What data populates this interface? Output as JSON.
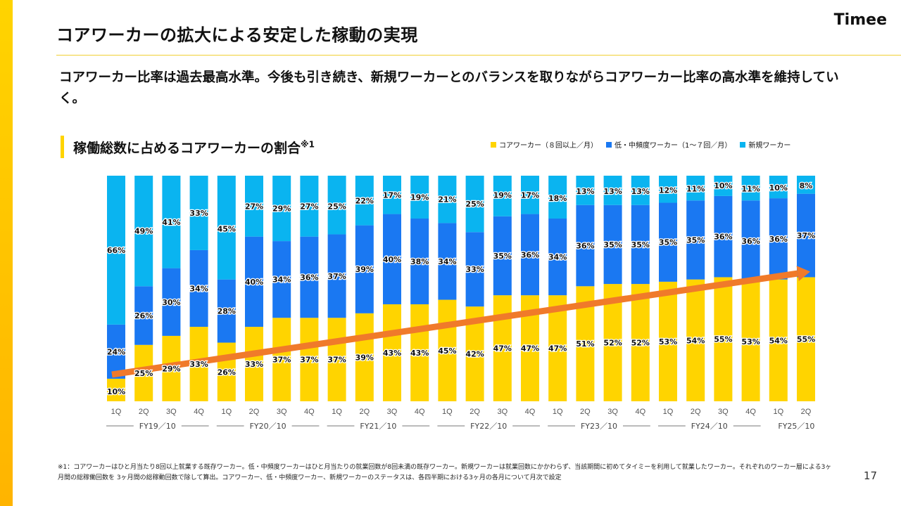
{
  "slide": {
    "title": "コアワーカーの拡大による安定した稼動の実現",
    "logo": "Timee",
    "lead": "コアワーカー比率は過去最高水準。今後も引き続き、新規ワーカーとのバランスを取りながらコアワーカー比率の高水準を維持していく。",
    "subheading": "稼働総数に占めるコアワーカーの割合",
    "subheading_note": "※1",
    "footnote": "※1：コアワーカーはひと月当たり8回以上就業する既存ワーカー。低・中頻度ワーカーはひと月当たりの就業回数が8回未満の既存ワーカー。新規ワーカーは就業回数にかかわらず、当該期間に初めてタイミーを利用して就業したワーカー。それぞれのワーカー層による3ヶ月間の総稼働回数を 3ヶ月間の総稼動回数で除して算出。コアワーカー、低・中頻度ワーカー、新規ワーカーのステータスは、各四半期における3ヶ月の各月について月次で設定",
    "page_number": "17",
    "colors": {
      "band": "#ffcc00",
      "core": "#ffd400",
      "mid": "#1a78f2",
      "new": "#0ab4f0",
      "arrow": "#f07a2a",
      "rule": "#f0cf33"
    }
  },
  "chart_data": {
    "type": "bar",
    "stacked": true,
    "legend_position": "top-right",
    "categories": [
      "1Q",
      "2Q",
      "3Q",
      "4Q",
      "1Q",
      "2Q",
      "3Q",
      "4Q",
      "1Q",
      "2Q",
      "3Q",
      "4Q",
      "1Q",
      "2Q",
      "3Q",
      "4Q",
      "1Q",
      "2Q",
      "3Q",
      "4Q",
      "1Q",
      "2Q",
      "3Q",
      "4Q",
      "1Q",
      "2Q"
    ],
    "fiscal_years": [
      {
        "label": "FY19／10",
        "count": 4
      },
      {
        "label": "FY20／10",
        "count": 4
      },
      {
        "label": "FY21／10",
        "count": 4
      },
      {
        "label": "FY22／10",
        "count": 4
      },
      {
        "label": "FY23／10",
        "count": 4
      },
      {
        "label": "FY24／10",
        "count": 4
      },
      {
        "label": "FY25／10",
        "count": 2
      }
    ],
    "series": [
      {
        "name": "コアワーカー（８回以上／月）",
        "color": "#ffd400",
        "values": [
          10,
          25,
          29,
          33,
          26,
          33,
          37,
          37,
          37,
          39,
          43,
          43,
          45,
          42,
          47,
          47,
          47,
          51,
          52,
          52,
          53,
          54,
          55,
          53,
          54,
          55
        ]
      },
      {
        "name": "低・中頻度ワーカー（1〜７回／月）",
        "color": "#1a78f2",
        "values": [
          24,
          26,
          30,
          34,
          28,
          40,
          34,
          36,
          37,
          39,
          40,
          38,
          34,
          33,
          35,
          36,
          34,
          36,
          35,
          35,
          35,
          35,
          36,
          36,
          36,
          37
        ]
      },
      {
        "name": "新規ワーカー",
        "color": "#0ab4f0",
        "values": [
          66,
          49,
          41,
          33,
          45,
          27,
          29,
          27,
          25,
          22,
          17,
          19,
          21,
          25,
          19,
          17,
          18,
          13,
          13,
          13,
          12,
          11,
          10,
          11,
          10,
          8
        ]
      }
    ],
    "ylim": [
      0,
      100
    ],
    "label_suffix": "%",
    "trend_arrow": true
  }
}
